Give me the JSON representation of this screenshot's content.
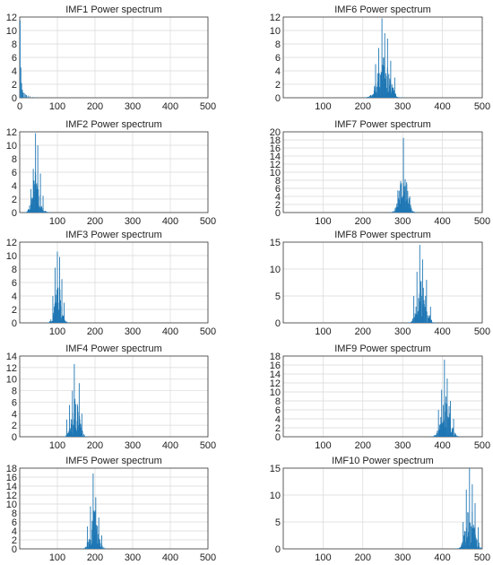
{
  "chart_data": [
    {
      "type": "bar",
      "title": "IMF1 Power spectrum",
      "xlim": [
        0,
        500
      ],
      "ylim": [
        0,
        12
      ],
      "xticks": [
        0,
        100,
        200,
        300,
        400,
        500
      ],
      "yticks": [
        0,
        2,
        4,
        6,
        8,
        10,
        12
      ],
      "x": [
        1,
        3,
        5,
        7,
        9,
        12,
        15,
        18,
        22,
        27,
        35,
        45,
        55
      ],
      "values": [
        11.5,
        4.5,
        2.2,
        1.2,
        0.8,
        0.7,
        0.5,
        0.4,
        0.3,
        0.2,
        0.1,
        0.08,
        0.05
      ]
    },
    {
      "type": "bar",
      "title": "IMF6 Power spectrum",
      "xlim": [
        0,
        500
      ],
      "ylim": [
        0,
        12
      ],
      "xticks": [
        100,
        200,
        300,
        400,
        500
      ],
      "yticks": [
        0,
        2,
        4,
        6,
        8,
        10,
        12
      ],
      "peaks": [
        [
          248,
          11.8
        ],
        [
          255,
          9.6
        ],
        [
          262,
          8.8
        ],
        [
          240,
          7.4
        ],
        [
          232,
          5.0
        ],
        [
          270,
          5.5
        ],
        [
          280,
          3.0
        ]
      ],
      "center": 252,
      "spread": 26
    },
    {
      "type": "bar",
      "title": "IMF2 Power spectrum",
      "xlim": [
        0,
        500
      ],
      "ylim": [
        0,
        12
      ],
      "xticks": [
        100,
        200,
        300,
        400,
        500
      ],
      "yticks": [
        0,
        2,
        4,
        6,
        8,
        10,
        12
      ],
      "peaks": [
        [
          42,
          11.8
        ],
        [
          48,
          10.0
        ],
        [
          36,
          6.5
        ],
        [
          55,
          5.8
        ],
        [
          30,
          3.5
        ],
        [
          62,
          2.5
        ]
      ],
      "center": 45,
      "spread": 18
    },
    {
      "type": "bar",
      "title": "IMF7 Power spectrum",
      "xlim": [
        0,
        500
      ],
      "ylim": [
        0,
        20
      ],
      "xticks": [
        100,
        200,
        300,
        400,
        500
      ],
      "yticks": [
        0,
        2,
        4,
        6,
        8,
        10,
        12,
        14,
        16,
        18,
        20
      ],
      "peaks": [
        [
          302,
          18.5
        ],
        [
          295,
          7.8
        ],
        [
          310,
          7.5
        ],
        [
          288,
          5.5
        ],
        [
          318,
          4.0
        ]
      ],
      "center": 302,
      "spread": 18
    },
    {
      "type": "bar",
      "title": "IMF3 Power spectrum",
      "xlim": [
        0,
        500
      ],
      "ylim": [
        0,
        12
      ],
      "xticks": [
        100,
        200,
        300,
        400,
        500
      ],
      "yticks": [
        0,
        2,
        4,
        6,
        8,
        10,
        12
      ],
      "peaks": [
        [
          100,
          10.6
        ],
        [
          106,
          9.8
        ],
        [
          94,
          8.2
        ],
        [
          112,
          6.5
        ],
        [
          88,
          4.0
        ],
        [
          118,
          3.0
        ]
      ],
      "center": 102,
      "spread": 16
    },
    {
      "type": "bar",
      "title": "IMF8 Power spectrum",
      "xlim": [
        0,
        500
      ],
      "ylim": [
        0,
        15
      ],
      "xticks": [
        100,
        200,
        300,
        400,
        500
      ],
      "yticks": [
        0,
        5,
        10,
        15
      ],
      "peaks": [
        [
          343,
          14.5
        ],
        [
          350,
          11.8
        ],
        [
          336,
          9.5
        ],
        [
          360,
          8.0
        ],
        [
          328,
          5.0
        ],
        [
          370,
          3.0
        ]
      ],
      "center": 348,
      "spread": 20
    },
    {
      "type": "bar",
      "title": "IMF4 Power spectrum",
      "xlim": [
        0,
        500
      ],
      "ylim": [
        0,
        14
      ],
      "xticks": [
        100,
        200,
        300,
        400,
        500
      ],
      "yticks": [
        0,
        2,
        4,
        6,
        8,
        10,
        12,
        14
      ],
      "peaks": [
        [
          145,
          12.6
        ],
        [
          158,
          9.3
        ],
        [
          140,
          8.0
        ],
        [
          132,
          5.5
        ],
        [
          165,
          4.0
        ],
        [
          125,
          3.0
        ]
      ],
      "center": 148,
      "spread": 18
    },
    {
      "type": "bar",
      "title": "IMF9 Power spectrum",
      "xlim": [
        0,
        500
      ],
      "ylim": [
        0,
        18
      ],
      "xticks": [
        100,
        200,
        300,
        400,
        500
      ],
      "yticks": [
        0,
        2,
        4,
        6,
        8,
        10,
        12,
        14,
        16,
        18
      ],
      "peaks": [
        [
          405,
          17.2
        ],
        [
          412,
          13.0
        ],
        [
          398,
          10.5
        ],
        [
          420,
          8.0
        ],
        [
          390,
          6.0
        ],
        [
          428,
          4.0
        ]
      ],
      "center": 408,
      "spread": 20
    },
    {
      "type": "bar",
      "title": "IMF5 Power spectrum",
      "xlim": [
        0,
        500
      ],
      "ylim": [
        0,
        18
      ],
      "xticks": [
        100,
        200,
        300,
        400,
        500
      ],
      "yticks": [
        0,
        2,
        4,
        6,
        8,
        10,
        12,
        14,
        16,
        18
      ],
      "peaks": [
        [
          195,
          16.8
        ],
        [
          202,
          11.5
        ],
        [
          188,
          9.5
        ],
        [
          210,
          7.0
        ],
        [
          180,
          5.0
        ],
        [
          218,
          3.0
        ]
      ],
      "center": 198,
      "spread": 18
    },
    {
      "type": "bar",
      "title": "IMF10 Power spectrum",
      "xlim": [
        0,
        500
      ],
      "ylim": [
        0,
        15
      ],
      "xticks": [
        100,
        200,
        300,
        400,
        500
      ],
      "yticks": [
        0,
        5,
        10,
        15
      ],
      "peaks": [
        [
          468,
          15.0
        ],
        [
          475,
          12.0
        ],
        [
          460,
          11.0
        ],
        [
          482,
          8.5
        ],
        [
          452,
          5.0
        ],
        [
          490,
          4.0
        ]
      ],
      "center": 470,
      "spread": 20
    }
  ],
  "colors": {
    "bar": "#1f77b4",
    "grid": "#d9d9d9",
    "axis": "#333333",
    "text": "#222222"
  }
}
